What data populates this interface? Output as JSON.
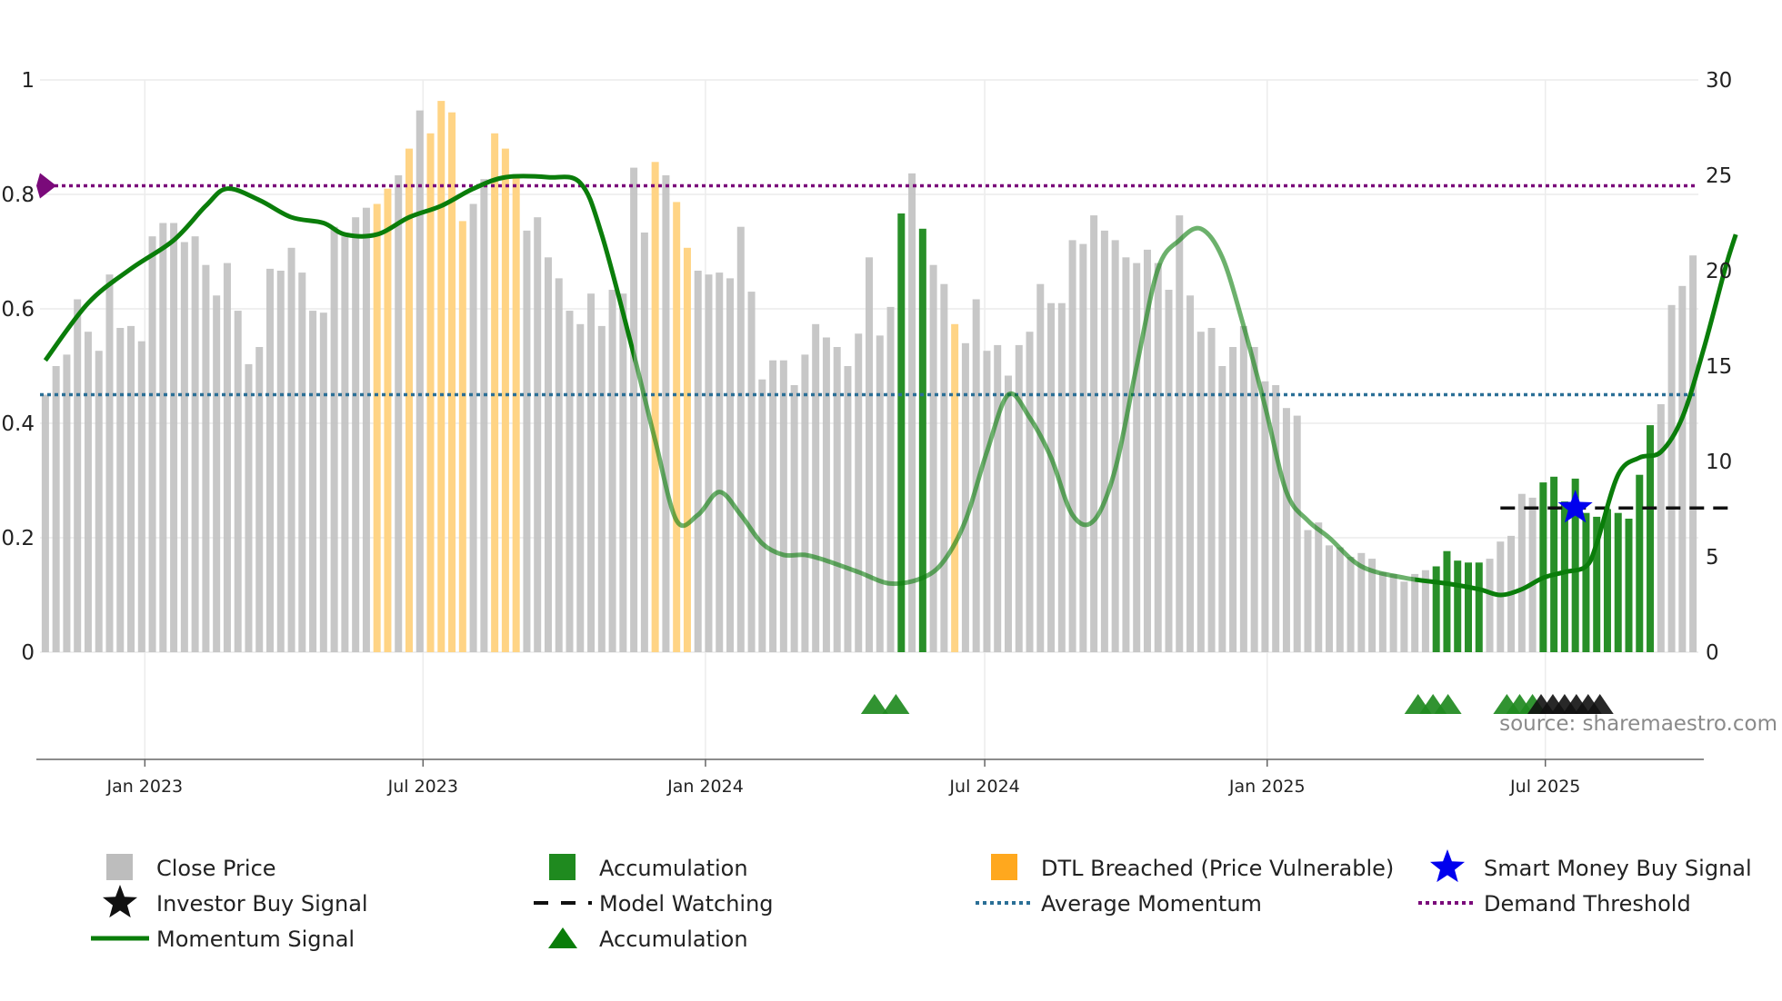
{
  "chart_data": {
    "type": "bar",
    "title": "",
    "source": "source: sharemaestro.com",
    "colors": {
      "close": "#c4c4c4",
      "accumulation": "#1f8a1f",
      "dtl": "#ffd280",
      "dtl_legend": "#ffa81e",
      "momentum": "#0a7d0a",
      "avg_momentum": "#2a6f96",
      "demand": "#7a0a7a",
      "model": "#111111",
      "smart_money": "#0000ee",
      "investor": "#111111",
      "grid": "#ececec",
      "axis": "#666666"
    },
    "left_axis": {
      "range": [
        0,
        1
      ],
      "ticks": [
        "0",
        "0.2",
        "0.4",
        "0.6",
        "0.8",
        "1"
      ],
      "tick_values": [
        0,
        0.2,
        0.4,
        0.6,
        0.8,
        1.0
      ]
    },
    "right_axis": {
      "range": [
        0,
        30
      ],
      "ticks": [
        "0",
        "5",
        "10",
        "15",
        "20",
        "25",
        "30"
      ],
      "tick_values": [
        0,
        5,
        10,
        15,
        20,
        25,
        30
      ]
    },
    "x_axis": {
      "ticks": [
        "Jan 2023",
        "Jul 2023",
        "Jan 2024",
        "Jul 2024",
        "Jan 2025",
        "Jul 2025"
      ],
      "tick_bar_index": [
        9.3,
        35.3,
        61.7,
        87.8,
        114.2,
        140.2
      ]
    },
    "close_price": [
      13.5,
      15,
      15.6,
      18.5,
      16.8,
      15.8,
      19.8,
      17,
      17.1,
      16.3,
      21.8,
      22.5,
      22.5,
      21.5,
      21.8,
      20.3,
      18.7,
      20.4,
      17.9,
      15.1,
      16,
      20.1,
      20,
      21.2,
      19.9,
      17.9,
      17.8,
      22.3,
      21.8,
      22.8,
      23.3,
      23.5,
      24.3,
      25,
      26.4,
      28.4,
      27.2,
      28.9,
      28.3,
      22.6,
      23.5,
      24.8,
      27.2,
      26.4,
      25,
      22.1,
      22.8,
      20.7,
      19.6,
      17.9,
      17.2,
      18.8,
      17.1,
      19,
      18.8,
      25.4,
      22,
      25.7,
      25,
      23.6,
      21.2,
      20,
      19.8,
      19.9,
      19.6,
      22.3,
      18.9,
      14.3,
      15.3,
      15.3,
      14,
      15.6,
      17.2,
      16.5,
      16,
      15,
      16.7,
      20.7,
      16.6,
      18.1,
      23,
      25.1,
      22.2,
      20.3,
      19.3,
      17.2,
      16.2,
      18.5,
      15.8,
      16.1,
      14.5,
      16.1,
      16.8,
      19.3,
      18.3,
      18.3,
      21.6,
      21.4,
      22.9,
      22.1,
      21.6,
      20.7,
      20.4,
      21.1,
      20.4,
      19,
      22.9,
      18.7,
      16.8,
      17,
      15,
      16,
      17.1,
      16,
      14.2,
      14,
      12.8,
      12.4,
      6.4,
      6.8,
      5.6,
      5.5,
      5,
      5.2,
      4.9,
      4.2,
      4.1,
      3.7,
      4.1,
      4.3,
      4.5,
      5.3,
      4.8,
      4.7,
      4.7,
      4.9,
      5.8,
      6.1,
      8.3,
      8.1,
      8.9,
      9.2,
      7.9,
      9.1,
      7.3,
      7.1,
      7.5,
      7.3,
      7,
      9.3,
      11.9,
      13,
      18.2,
      19.2,
      20.8
    ],
    "bar_category": "CCCCCCCCCCCCCCCCCCCCCCCCCCCCCCCDDCDCDDDDCCDDDCCCCCCCCCCCCDCDDCCCCCCCCCCCCCCCCCCCACACCDCCCCCCCCCCCCCCCCCCCCCCCCCCCCCCCCCCCCCCCCCCCCAAAAACCCCCAAAAAAAAAAACCCCCCCCCCCC",
    "momentum": [
      [
        0,
        0.51
      ],
      [
        4,
        0.61
      ],
      [
        8,
        0.67
      ],
      [
        12,
        0.72
      ],
      [
        15,
        0.78
      ],
      [
        17,
        0.81
      ],
      [
        20,
        0.79
      ],
      [
        23,
        0.76
      ],
      [
        26,
        0.75
      ],
      [
        28,
        0.73
      ],
      [
        31,
        0.73
      ],
      [
        34,
        0.76
      ],
      [
        37,
        0.78
      ],
      [
        40,
        0.81
      ],
      [
        43,
        0.83
      ],
      [
        47,
        0.83
      ],
      [
        50,
        0.82
      ],
      [
        52,
        0.73
      ],
      [
        55,
        0.52
      ],
      [
        57,
        0.37
      ],
      [
        59,
        0.23
      ],
      [
        61,
        0.24
      ],
      [
        63,
        0.28
      ],
      [
        65,
        0.24
      ],
      [
        67,
        0.19
      ],
      [
        69,
        0.17
      ],
      [
        71,
        0.17
      ],
      [
        73,
        0.16
      ],
      [
        76,
        0.14
      ],
      [
        79,
        0.12
      ],
      [
        82,
        0.13
      ],
      [
        84,
        0.16
      ],
      [
        86,
        0.23
      ],
      [
        88,
        0.35
      ],
      [
        90,
        0.45
      ],
      [
        92,
        0.41
      ],
      [
        94,
        0.34
      ],
      [
        96,
        0.24
      ],
      [
        98,
        0.23
      ],
      [
        100,
        0.32
      ],
      [
        102,
        0.5
      ],
      [
        104,
        0.67
      ],
      [
        106,
        0.72
      ],
      [
        108,
        0.74
      ],
      [
        110,
        0.69
      ],
      [
        112,
        0.57
      ],
      [
        114,
        0.43
      ],
      [
        116,
        0.28
      ],
      [
        118,
        0.23
      ],
      [
        120,
        0.2
      ],
      [
        123,
        0.15
      ],
      [
        127,
        0.13
      ],
      [
        131,
        0.12
      ],
      [
        134,
        0.11
      ],
      [
        136,
        0.1
      ],
      [
        138,
        0.11
      ],
      [
        140,
        0.13
      ],
      [
        142,
        0.14
      ],
      [
        144,
        0.15
      ],
      [
        145,
        0.19
      ],
      [
        147,
        0.31
      ],
      [
        149,
        0.34
      ],
      [
        151,
        0.35
      ],
      [
        153,
        0.41
      ],
      [
        155,
        0.53
      ],
      [
        157,
        0.67
      ],
      [
        158,
        0.73
      ]
    ],
    "momentum_faded_ranges": [
      [
        55,
        128
      ]
    ],
    "average_momentum": 0.45,
    "demand_threshold": 0.815,
    "model_watching": {
      "level": 0.252,
      "from_bar": 136,
      "to_bar": 158
    },
    "smart_money_signal": {
      "bar": 143,
      "value": 0.252
    },
    "accumulation_triangles": [
      77.5,
      79.5,
      128.3,
      129.7,
      131.1,
      136.6,
      137.8,
      139
    ],
    "investor_triangles": [
      139.8,
      140.9,
      142,
      143.1,
      144.2,
      145.3
    ],
    "legend": [
      {
        "label": "Close Price",
        "marker": "square",
        "color": "#bdbdbd"
      },
      {
        "label": "Accumulation",
        "marker": "square",
        "color": "#1f8a1f"
      },
      {
        "label": "DTL Breached (Price Vulnerable)",
        "marker": "square",
        "color": "#ffa81e"
      },
      {
        "label": "Smart Money Buy Signal",
        "marker": "star",
        "color": "#0000ee"
      },
      {
        "label": "Investor Buy Signal",
        "marker": "star",
        "color": "#111111"
      },
      {
        "label": "Model Watching",
        "marker": "dash",
        "color": "#111111"
      },
      {
        "label": "Average Momentum",
        "marker": "dotted",
        "color": "#2a6f96"
      },
      {
        "label": "Demand Threshold",
        "marker": "dotted",
        "color": "#7a0a7a"
      },
      {
        "label": "Momentum Signal",
        "marker": "line",
        "color": "#0a7d0a"
      },
      {
        "label": "Accumulation",
        "marker": "triangle",
        "color": "#0a7d0a"
      }
    ]
  }
}
